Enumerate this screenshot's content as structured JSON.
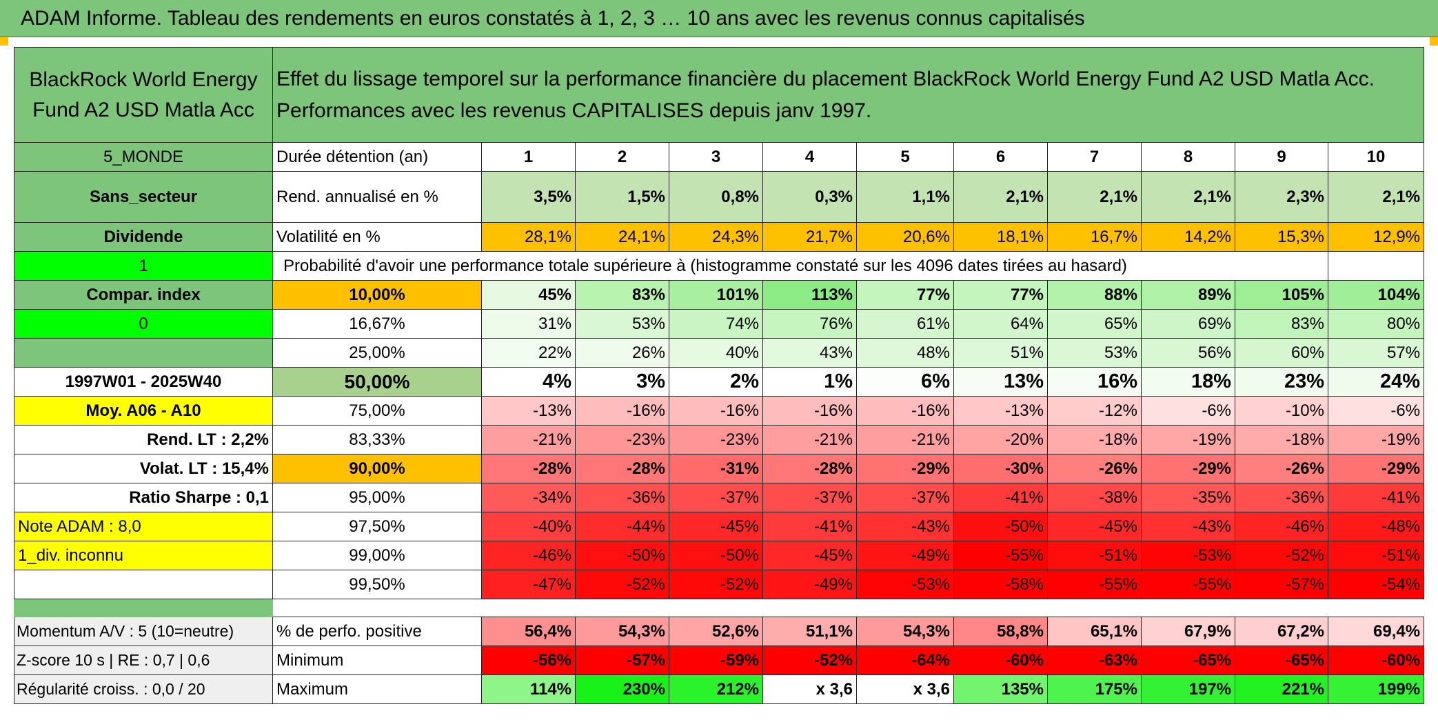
{
  "title": "ADAM Informe. Tableau des rendements en euros constatés à 1, 2, 3 … 10 ans avec les revenus connus capitalisés",
  "fund_name": "BlackRock World Energy Fund A2 USD Matla Acc",
  "description_line1": "Effet du lissage temporel sur la performance financière du placement BlackRock World Energy Fund A2 USD Matla Acc.",
  "description_line2": "Performances avec les revenus CAPITALISES depuis janv 1997.",
  "left_labels": {
    "zone": "5_MONDE",
    "sector": "Sans_secteur",
    "type": "Dividende",
    "flag1": "1",
    "compar": "Compar. index",
    "flag0": "0",
    "period": "1997W01 - 2025W40",
    "moy": "Moy. A06 - A10",
    "rend_lt": "Rend. LT :   2,2%",
    "volat_lt": "Volat. LT :   15,4%",
    "sharpe": "Ratio Sharpe :    0,1",
    "note": "Note ADAM : 8,0",
    "div": "1_div. inconnu",
    "momentum": "Momentum A/V : 5 (10=neutre)",
    "zscore": "Z-score 10 s | RE : 0,7 | 0,6",
    "regularite": "Régularité croiss. : 0,0 / 20"
  },
  "header": {
    "label": "Durée détention (an)",
    "years": [
      "1",
      "2",
      "3",
      "4",
      "5",
      "6",
      "7",
      "8",
      "9",
      "10"
    ]
  },
  "rendement": {
    "label": "Rend. annualisé en %",
    "values": [
      "3,5%",
      "1,5%",
      "0,8%",
      "0,3%",
      "1,1%",
      "2,1%",
      "2,1%",
      "2,1%",
      "2,3%",
      "2,1%"
    ]
  },
  "volatilite": {
    "label": "Volatilité en %",
    "values": [
      "28,1%",
      "24,1%",
      "24,3%",
      "21,7%",
      "20,6%",
      "18,1%",
      "16,7%",
      "14,2%",
      "15,3%",
      "12,9%"
    ]
  },
  "proba_caption": "Probabilité d'avoir une performance totale supérieure à (histogramme constaté sur les 4096 dates tirées au hasard)",
  "quantiles": [
    {
      "label": "10,00%",
      "values": [
        "45%",
        "83%",
        "101%",
        "113%",
        "77%",
        "77%",
        "88%",
        "89%",
        "105%",
        "104%"
      ],
      "colors": [
        "#e6f9e0",
        "#b8f3b0",
        "#a8f0a0",
        "#8ceb84",
        "#c3f5bc",
        "#c3f5bc",
        "#b3f2ab",
        "#b0f1a8",
        "#9eee96",
        "#a0ef98"
      ],
      "bold": true,
      "labelBg": "#ffc000"
    },
    {
      "label": "16,67%",
      "values": [
        "31%",
        "53%",
        "74%",
        "76%",
        "61%",
        "64%",
        "65%",
        "69%",
        "83%",
        "80%"
      ],
      "colors": [
        "#eefbea",
        "#d9f7d3",
        "#c8f5c1",
        "#c6f5bf",
        "#d4f6ce",
        "#d2f6cc",
        "#d1f6cb",
        "#cef5c8",
        "#c0f4b9",
        "#c3f5bc"
      ],
      "bold": false,
      "labelBg": "#ffffff"
    },
    {
      "label": "25,00%",
      "values": [
        "22%",
        "26%",
        "40%",
        "43%",
        "48%",
        "51%",
        "53%",
        "56%",
        "60%",
        "57%"
      ],
      "colors": [
        "#f3fcf0",
        "#f0fbed",
        "#e6f9e1",
        "#e3f9de",
        "#dff8da",
        "#ddf8d8",
        "#dbf7d6",
        "#d9f7d3",
        "#d6f6d0",
        "#d8f7d2"
      ],
      "bold": false,
      "labelBg": "#ffffff"
    },
    {
      "label": "50,00%",
      "values": [
        "4%",
        "3%",
        "2%",
        "1%",
        "6%",
        "13%",
        "16%",
        "18%",
        "23%",
        "24%"
      ],
      "colors": [
        "#ffffff",
        "#ffffff",
        "#ffffff",
        "#ffffff",
        "#fbfefa",
        "#f7fdf5",
        "#f5fcf3",
        "#f3fcf1",
        "#f1fcee",
        "#f0fbed"
      ],
      "bold": true,
      "big": true,
      "labelBg": "#a9d18e"
    },
    {
      "label": "75,00%",
      "values": [
        "-13%",
        "-16%",
        "-16%",
        "-16%",
        "-16%",
        "-13%",
        "-12%",
        "-6%",
        "-10%",
        "-6%"
      ],
      "colors": [
        "#ffc7c7",
        "#ffbcbc",
        "#ffbcbc",
        "#ffbcbc",
        "#ffbcbc",
        "#ffc7c7",
        "#ffcbcb",
        "#ffe0e0",
        "#ffd2d2",
        "#ffe0e0"
      ],
      "bold": false,
      "labelBg": "#ffffff"
    },
    {
      "label": "83,33%",
      "values": [
        "-21%",
        "-23%",
        "-23%",
        "-21%",
        "-21%",
        "-20%",
        "-18%",
        "-19%",
        "-18%",
        "-19%"
      ],
      "colors": [
        "#ff9e9e",
        "#ff9696",
        "#ff9696",
        "#ff9e9e",
        "#ff9e9e",
        "#ffa3a3",
        "#ffabab",
        "#ffa7a7",
        "#ffabab",
        "#ffa7a7"
      ],
      "bold": false,
      "labelBg": "#ffffff"
    },
    {
      "label": "90,00%",
      "values": [
        "-28%",
        "-28%",
        "-31%",
        "-28%",
        "-29%",
        "-30%",
        "-26%",
        "-29%",
        "-26%",
        "-29%"
      ],
      "colors": [
        "#ff7676",
        "#ff7676",
        "#ff6a6a",
        "#ff7676",
        "#ff7272",
        "#ff6e6e",
        "#ff7f7f",
        "#ff7272",
        "#ff7f7f",
        "#ff7272"
      ],
      "bold": true,
      "labelBg": "#ffc000"
    },
    {
      "label": "95,00%",
      "values": [
        "-34%",
        "-36%",
        "-37%",
        "-37%",
        "-37%",
        "-41%",
        "-38%",
        "-35%",
        "-36%",
        "-41%"
      ],
      "colors": [
        "#ff5a5a",
        "#ff5050",
        "#ff4c4c",
        "#ff4c4c",
        "#ff4c4c",
        "#ff3a3a",
        "#ff4848",
        "#ff5656",
        "#ff5050",
        "#ff3a3a"
      ],
      "bold": false,
      "labelBg": "#ffffff"
    },
    {
      "label": "97,50%",
      "values": [
        "-40%",
        "-44%",
        "-45%",
        "-41%",
        "-43%",
        "-50%",
        "-45%",
        "-43%",
        "-46%",
        "-48%"
      ],
      "colors": [
        "#ff3f3f",
        "#ff2c2c",
        "#ff2828",
        "#ff3a3a",
        "#ff3131",
        "#ff1010",
        "#ff2828",
        "#ff3131",
        "#ff2424",
        "#ff1a1a"
      ],
      "bold": false,
      "labelBg": "#ffffff"
    },
    {
      "label": "99,00%",
      "values": [
        "-46%",
        "-50%",
        "-50%",
        "-45%",
        "-49%",
        "-55%",
        "-51%",
        "-53%",
        "-52%",
        "-51%"
      ],
      "colors": [
        "#ff2424",
        "#ff1010",
        "#ff1010",
        "#ff2828",
        "#ff1515",
        "#ff0000",
        "#ff0c0c",
        "#ff0404",
        "#ff0808",
        "#ff0c0c"
      ],
      "bold": false,
      "labelBg": "#ffffff"
    },
    {
      "label": "99,50%",
      "values": [
        "-47%",
        "-52%",
        "-52%",
        "-49%",
        "-53%",
        "-58%",
        "-55%",
        "-55%",
        "-57%",
        "-54%"
      ],
      "colors": [
        "#ff2020",
        "#ff0808",
        "#ff0808",
        "#ff1515",
        "#ff0404",
        "#ff0000",
        "#ff0000",
        "#ff0000",
        "#ff0000",
        "#ff0000"
      ],
      "bold": false,
      "labelBg": "#ffffff"
    }
  ],
  "perfo_positive": {
    "label": "% de perfo. positive",
    "values": [
      "56,4%",
      "54,3%",
      "52,6%",
      "51,1%",
      "54,3%",
      "58,8%",
      "65,1%",
      "67,9%",
      "67,2%",
      "69,4%"
    ],
    "colors": [
      "#ff8f8f",
      "#ff9a9a",
      "#ffa5a5",
      "#ffacac",
      "#ff9a9a",
      "#ff8787",
      "#ffc4c4",
      "#ffd2d2",
      "#ffcece",
      "#ffd9d9"
    ]
  },
  "minimum": {
    "label": "Minimum",
    "values": [
      "-56%",
      "-57%",
      "-59%",
      "-52%",
      "-64%",
      "-60%",
      "-63%",
      "-65%",
      "-65%",
      "-60%"
    ],
    "colors": [
      "#ff0000",
      "#ff0000",
      "#ff0000",
      "#ff0000",
      "#ff0000",
      "#ff0000",
      "#ff0000",
      "#ff0000",
      "#ff0000",
      "#ff0000"
    ]
  },
  "maximum": {
    "label": "Maximum",
    "values": [
      "114%",
      "230%",
      "212%",
      "x 3,6",
      "x 3,6",
      "135%",
      "175%",
      "197%",
      "221%",
      "199%"
    ],
    "colors": [
      "#8ef588",
      "#19f219",
      "#2bf32b",
      "#ffffff",
      "#ffffff",
      "#72f46e",
      "#4ef34d",
      "#33f233",
      "#22f222",
      "#35f235"
    ]
  },
  "colors": {
    "green_header": "#7dc57a",
    "bright_green": "#00ff00",
    "orange": "#ffc000",
    "yellow": "#ffff00",
    "rend_row": "#c4e3b3",
    "label_red": "#c00000"
  }
}
